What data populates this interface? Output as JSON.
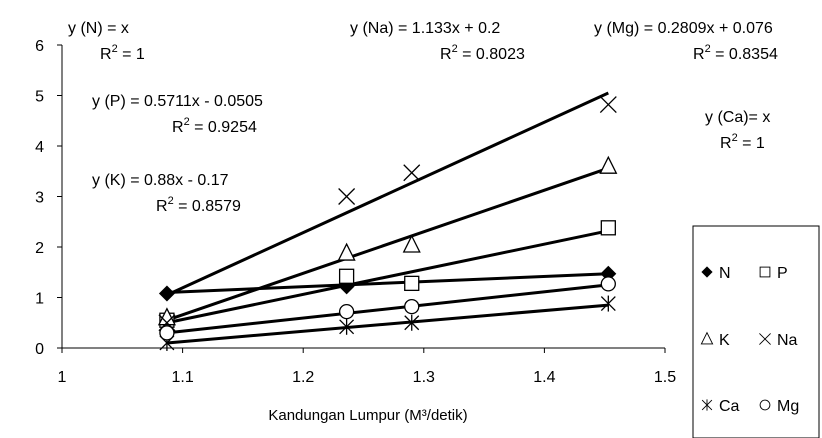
{
  "chart_data": {
    "type": "scatter",
    "xlabel": "Kandungan Lumpur (M³/detik)",
    "xlim": [
      1,
      1.5
    ],
    "ylim": [
      0,
      6
    ],
    "x_ticks": [
      "1",
      "1.1",
      "1.2",
      "1.3",
      "1.4",
      "1.5"
    ],
    "y_ticks": [
      "0",
      "1",
      "2",
      "3",
      "4",
      "5",
      "6"
    ],
    "grid": false,
    "legend_position": "bottom-right",
    "trend_x_range": [
      1.087,
      1.453
    ],
    "series": [
      {
        "name": "N",
        "marker": "diamond-filled",
        "x": [
          1.087,
          1.236,
          1.453
        ],
        "y": [
          1.08,
          1.22,
          1.47
        ],
        "trend": {
          "slope": 1,
          "intercept": 0
        }
      },
      {
        "name": "P",
        "marker": "square-open",
        "x": [
          1.087,
          1.236,
          1.29,
          1.453
        ],
        "y": [
          0.55,
          1.42,
          1.28,
          2.38
        ],
        "trend": {
          "slope": 0.5711,
          "intercept": -0.0505
        }
      },
      {
        "name": "K",
        "marker": "triangle-open",
        "x": [
          1.087,
          1.236,
          1.29,
          1.453
        ],
        "y": [
          0.6,
          1.88,
          2.04,
          3.6
        ],
        "trend": {
          "slope": 0.88,
          "intercept": -0.17
        }
      },
      {
        "name": "Na",
        "marker": "x",
        "x": [
          1.087,
          1.236,
          1.29,
          1.453
        ],
        "y": [
          0.5,
          3.0,
          3.47,
          4.82
        ],
        "trend": {
          "slope": 1.133,
          "intercept": 0.2
        }
      },
      {
        "name": "Ca",
        "marker": "asterisk",
        "x": [
          1.087,
          1.236,
          1.29,
          1.453
        ],
        "y": [
          0.1,
          0.42,
          0.5,
          0.88
        ],
        "trend": {
          "slope": 1,
          "intercept": 0
        }
      },
      {
        "name": "Mg",
        "marker": "circle-open",
        "x": [
          1.087,
          1.236,
          1.29,
          1.453
        ],
        "y": [
          0.3,
          0.72,
          0.82,
          1.27
        ],
        "trend": {
          "slope": 0.2809,
          "intercept": 0.076
        }
      }
    ],
    "trendlines_drawn": [
      {
        "series": "N",
        "y": [
          1.1,
          1.47
        ]
      },
      {
        "series": "P",
        "y": [
          0.5,
          2.32
        ]
      },
      {
        "series": "K",
        "y": [
          0.55,
          3.56
        ]
      },
      {
        "series": "Na",
        "y": [
          1.05,
          5.05
        ]
      },
      {
        "series": "Ca",
        "y": [
          0.1,
          0.85
        ]
      },
      {
        "series": "Mg",
        "y": [
          0.3,
          1.25
        ]
      }
    ],
    "annotations": [
      {
        "eq": "y (N) = x",
        "r2_label": "R",
        "r2_value": " = 1"
      },
      {
        "eq": "y (Na) = 1.133x + 0.2",
        "r2_label": "R",
        "r2_value": " = 0.8023"
      },
      {
        "eq": "y (Mg) = 0.2809x + 0.076",
        "r2_label": "R",
        "r2_value": " = 0.8354"
      },
      {
        "eq": "y (P) = 0.5711x - 0.0505",
        "r2_label": "R",
        "r2_value": " = 0.9254"
      },
      {
        "eq": "y (Ca)= x",
        "r2_label": "R",
        "r2_value": " = 1"
      },
      {
        "eq": "y (K) = 0.88x - 0.17",
        "r2_label": "R",
        "r2_value": " = 0.8579"
      }
    ],
    "r2_superscript": "2"
  }
}
